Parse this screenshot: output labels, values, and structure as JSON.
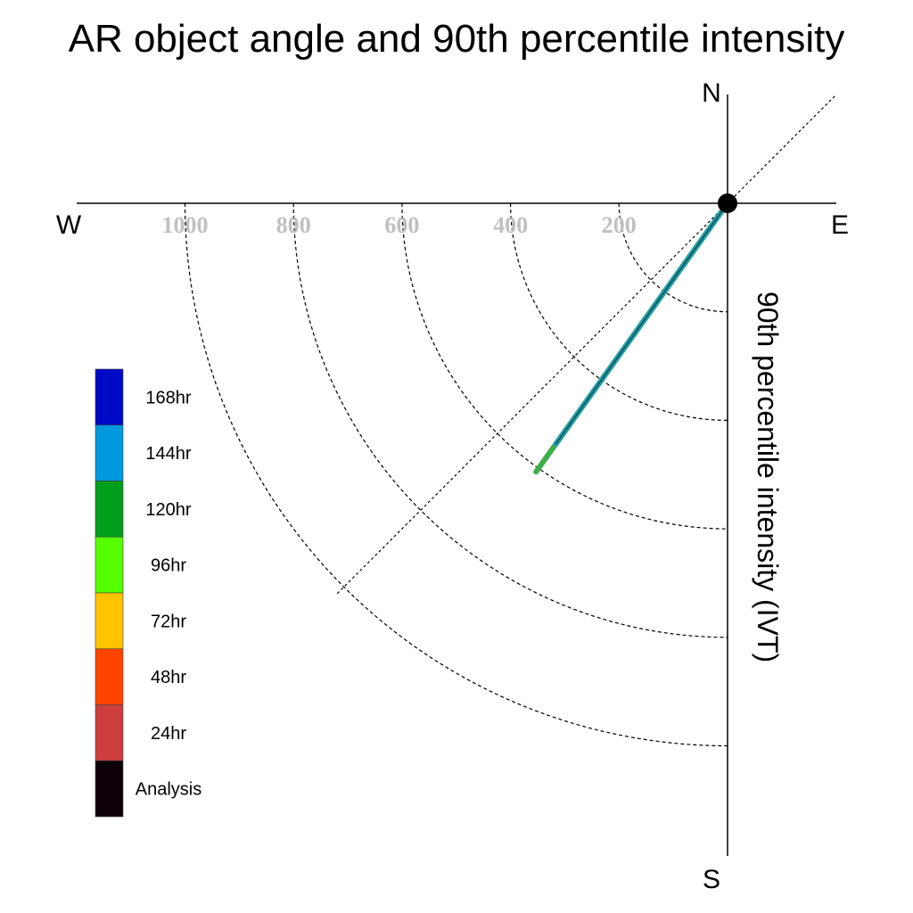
{
  "chart_data": {
    "type": "polar-line",
    "title": "AR object angle and 90th percentile intensity",
    "ylabel": "90th percentile intensity (IVT)",
    "directions": {
      "north": "N",
      "south": "S",
      "east": "E",
      "west": "W"
    },
    "radial_ticks": [
      200,
      400,
      600,
      800,
      1000
    ],
    "radial_tick_labels": [
      "200",
      "400",
      "600",
      "800",
      "1000"
    ],
    "radial_range": [
      0,
      1200
    ],
    "grid": true,
    "legend_position": "left",
    "legend": [
      {
        "label": "168hr",
        "color": "#0009C6"
      },
      {
        "label": "144hr",
        "color": "#0099DD"
      },
      {
        "label": "120hr",
        "color": "#009F1B"
      },
      {
        "label": "96hr",
        "color": "#55FF00"
      },
      {
        "label": "72hr",
        "color": "#FFC400"
      },
      {
        "label": "48hr",
        "color": "#FF4400"
      },
      {
        "label": "24hr",
        "color": "#CC3E3E"
      },
      {
        "label": "Analysis",
        "color": "#0D0008"
      }
    ],
    "series": [
      {
        "name": "120hr",
        "color": "#3FAE49",
        "angle_deg": 215.5,
        "intensity": 608
      },
      {
        "name": "144hr",
        "color": "#1E9FA8",
        "angle_deg": 215.5,
        "intensity": 545
      }
    ],
    "origin_marker": true
  }
}
